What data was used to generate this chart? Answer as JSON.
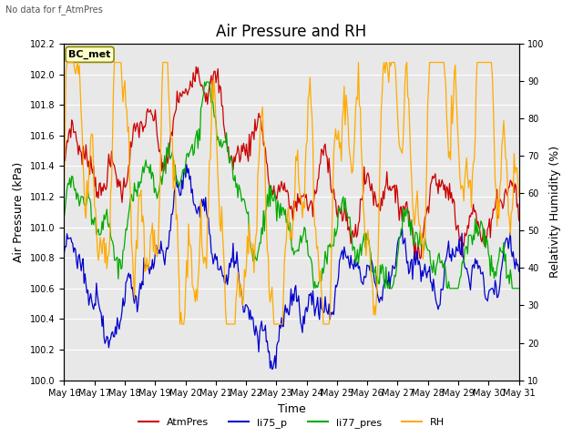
{
  "title": "Air Pressure and RH",
  "top_left_note": "No data for f_AtmPres",
  "annotation_box": "BC_met",
  "ylabel_left": "Air Pressure (kPa)",
  "ylabel_right": "Relativity Humidity (%)",
  "xlabel": "Time",
  "ylim_left": [
    100.0,
    102.2
  ],
  "ylim_right": [
    10,
    100
  ],
  "yticks_left": [
    100.0,
    100.2,
    100.4,
    100.6,
    100.8,
    101.0,
    101.2,
    101.4,
    101.6,
    101.8,
    102.0,
    102.2
  ],
  "yticks_right": [
    10,
    20,
    30,
    40,
    50,
    60,
    70,
    80,
    90,
    100
  ],
  "x_tick_labels": [
    "May 16",
    "May 17",
    "May 18",
    "May 19",
    "May 20",
    "May 21",
    "May 22",
    "May 23",
    "May 24",
    "May 25",
    "May 26",
    "May 27",
    "May 28",
    "May 29",
    "May 30",
    "May 31"
  ],
  "plot_bg_color": "#e8e8e8",
  "legend": [
    {
      "label": "AtmPres",
      "color": "#cc0000"
    },
    {
      "label": "li75_p",
      "color": "#0000cc"
    },
    {
      "label": "li77_pres",
      "color": "#00aa00"
    },
    {
      "label": "RH",
      "color": "#ffaa00"
    }
  ],
  "title_fontsize": 12,
  "axis_fontsize": 9,
  "tick_fontsize": 7,
  "legend_fontsize": 8,
  "linewidth": 0.9,
  "n_points": 480,
  "seed": 7
}
